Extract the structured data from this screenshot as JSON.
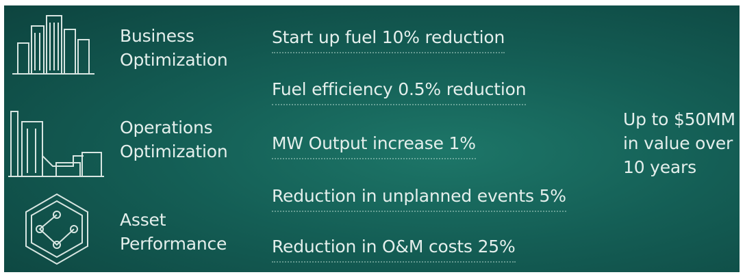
{
  "categories": [
    {
      "label_lines": [
        "Business",
        "Optimization"
      ]
    },
    {
      "label_lines": [
        "Operations",
        "Optimization"
      ]
    },
    {
      "label_lines": [
        "Asset",
        "Performance"
      ]
    }
  ],
  "benefits": [
    "Start up fuel 10% reduction",
    "Fuel efficiency 0.5% reduction",
    "MW Output increase 1%",
    "Reduction in unplanned events 5%",
    "Reduction in O&M costs 25%"
  ],
  "summary_lines": [
    "Up to $50MM",
    "in value over",
    "10 years"
  ]
}
